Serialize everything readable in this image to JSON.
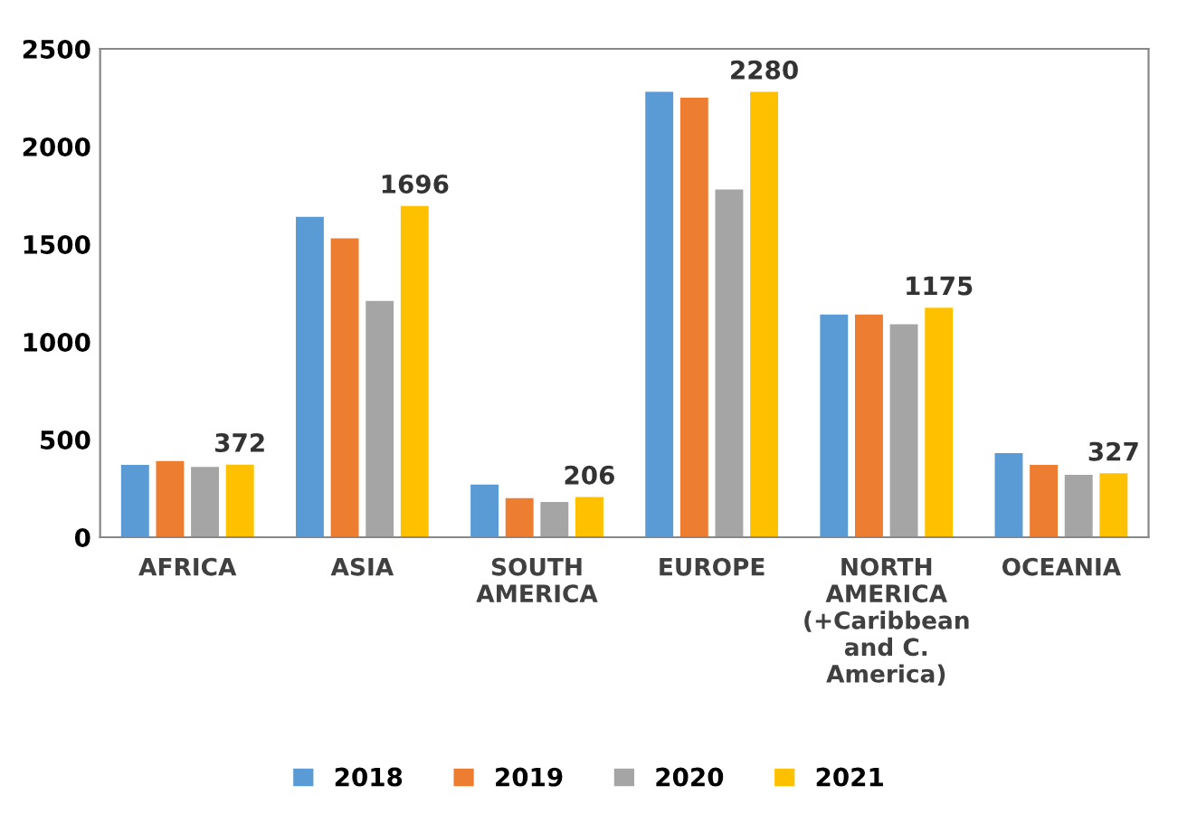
{
  "chart_data": {
    "type": "bar",
    "categories": [
      "AFRICA",
      "ASIA",
      "SOUTH\nAMERICA",
      "EUROPE",
      "NORTH\nAMERICA\n(+Caribbean\nand C.\nAmerica)",
      "OCEANIA"
    ],
    "series": [
      {
        "name": "2018",
        "color": "#5b9bd5",
        "values": [
          370,
          1640,
          270,
          2280,
          1140,
          430
        ]
      },
      {
        "name": "2019",
        "color": "#ed7d31",
        "values": [
          390,
          1530,
          200,
          2250,
          1140,
          370
        ]
      },
      {
        "name": "2020",
        "color": "#a5a5a5",
        "values": [
          360,
          1210,
          180,
          1780,
          1090,
          320
        ]
      },
      {
        "name": "2021",
        "color": "#ffc000",
        "values": [
          372,
          1696,
          206,
          2280,
          1175,
          327
        ],
        "value_labels": [
          "372",
          "1696",
          "206",
          "2280",
          "1175",
          "327"
        ]
      }
    ],
    "ylim": [
      0,
      2500
    ],
    "yticks": [
      0,
      500,
      1000,
      1500,
      2000,
      2500
    ],
    "grid": false,
    "legend": "bottom"
  }
}
